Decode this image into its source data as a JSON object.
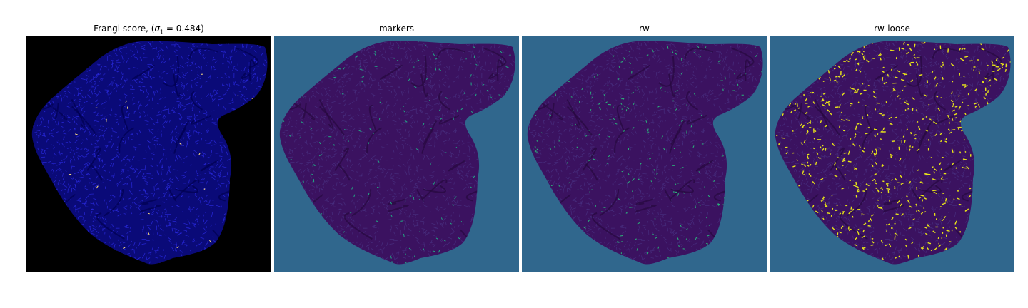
{
  "panels": [
    {
      "title": "Frangi score, (",
      "sigma_symbol": "σ",
      "sigma_sub": "1",
      "sigma_rest": " = 0.484)",
      "background": "#000000",
      "tissue": "#0a0a78",
      "lines": "#2a2adc",
      "highlight": "#ffe080"
    },
    {
      "title": "markers",
      "background": "#30678d",
      "tissue": "#3b1260",
      "lines": "#482f7f",
      "highlight": "#22a884"
    },
    {
      "title": "rw",
      "background": "#30678d",
      "tissue": "#3b1260",
      "lines": "#482f7f",
      "highlight": "#2ab47a"
    },
    {
      "title": "rw-loose",
      "background": "#30678d",
      "tissue": "#3b1260",
      "lines": "#482f7f",
      "highlight": "#e8e419"
    }
  ]
}
